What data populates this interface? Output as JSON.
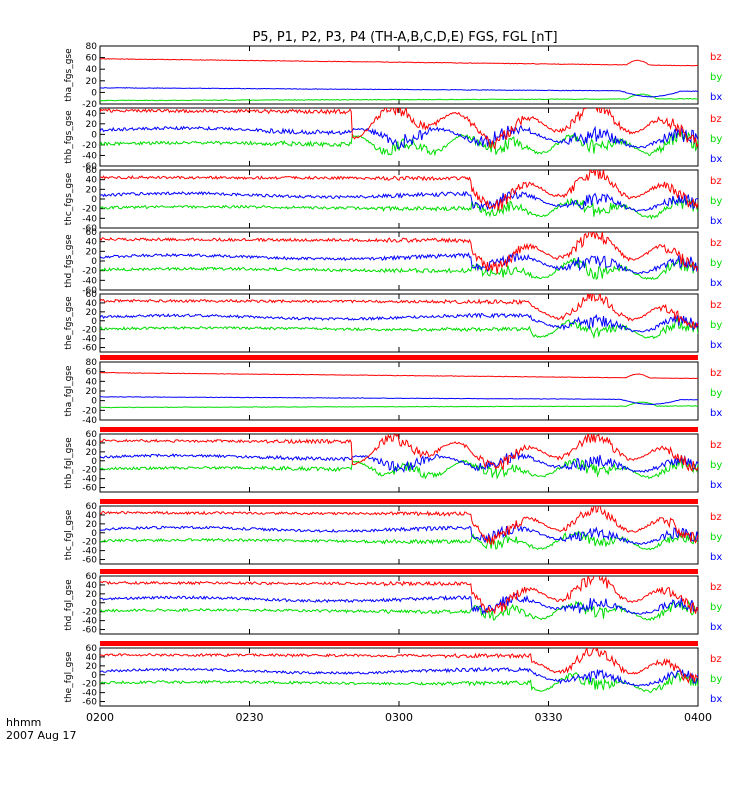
{
  "chart_data": {
    "type": "line",
    "title": "P5, P1, P2, P3, P4 (TH-A,B,C,D,E) FGS, FGL [nT]",
    "x_ticks": [
      "0200",
      "0230",
      "0300",
      "0330",
      "0400"
    ],
    "x_range": [
      "02:00",
      "04:00"
    ],
    "x_title": "hhmm",
    "date": "2007 Aug 17",
    "series_colors": {
      "bz": "#ff0000",
      "by": "#00dd00",
      "bx": "#0000ff"
    },
    "panels": [
      {
        "ylabel": "tha_fgs_gse",
        "yticks": [
          "80",
          "60",
          "40",
          "20",
          "0",
          "-20"
        ],
        "ylim": [
          -20,
          80
        ],
        "legend": [
          "bz",
          "by",
          "bx"
        ],
        "kind": "quiet",
        "bar": false
      },
      {
        "ylabel": "thb_fgs_gse",
        "yticks": [
          "40",
          "20",
          "0",
          "-20",
          "-40",
          "-60"
        ],
        "ylim": [
          -60,
          50
        ],
        "legend": [
          "bz",
          "by",
          "bx"
        ],
        "kind": "b",
        "bar": false
      },
      {
        "ylabel": "thc_fgs_gse",
        "yticks": [
          "60",
          "40",
          "20",
          "0",
          "-20",
          "-40",
          "-60"
        ],
        "ylim": [
          -60,
          60
        ],
        "legend": [
          "bz",
          "by",
          "bx"
        ],
        "kind": "c",
        "bar": false
      },
      {
        "ylabel": "thd_fgs_gse",
        "yticks": [
          "60",
          "40",
          "20",
          "0",
          "-20",
          "-40",
          "-60"
        ],
        "ylim": [
          -60,
          60
        ],
        "legend": [
          "bz",
          "by",
          "bx"
        ],
        "kind": "d",
        "bar": false
      },
      {
        "ylabel": "the_fgs_gse",
        "yticks": [
          "60",
          "40",
          "20",
          "0",
          "-20",
          "-40",
          "-60"
        ],
        "ylim": [
          -70,
          60
        ],
        "legend": [
          "bz",
          "by",
          "bx"
        ],
        "kind": "e",
        "bar": false
      },
      {
        "ylabel": "tha_fgl_gse",
        "yticks": [
          "80",
          "60",
          "40",
          "20",
          "0",
          "-20",
          "-40"
        ],
        "ylim": [
          -40,
          80
        ],
        "legend": [
          "bz",
          "by",
          "bx"
        ],
        "kind": "quiet",
        "bar": true
      },
      {
        "ylabel": "thb_fgl_gse",
        "yticks": [
          "60",
          "40",
          "20",
          "0",
          "-20",
          "-40",
          "-60"
        ],
        "ylim": [
          -70,
          60
        ],
        "legend": [
          "bz",
          "by",
          "bx"
        ],
        "kind": "b",
        "bar": true
      },
      {
        "ylabel": "thc_fgl_gse",
        "yticks": [
          "60",
          "40",
          "20",
          "0",
          "-20",
          "-40",
          "-60"
        ],
        "ylim": [
          -70,
          60
        ],
        "legend": [
          "bz",
          "by",
          "bx"
        ],
        "kind": "c",
        "bar": true
      },
      {
        "ylabel": "thd_fgl_gse",
        "yticks": [
          "60",
          "40",
          "20",
          "0",
          "-20",
          "-40",
          "-60"
        ],
        "ylim": [
          -70,
          60
        ],
        "legend": [
          "bz",
          "by",
          "bx"
        ],
        "kind": "d",
        "bar": true
      },
      {
        "ylabel": "the_fgl_gse",
        "yticks": [
          "60",
          "40",
          "20",
          "0",
          "-20",
          "-40",
          "-60"
        ],
        "ylim": [
          -70,
          60
        ],
        "legend": [
          "bz",
          "by",
          "bx"
        ],
        "kind": "e",
        "bar": true
      }
    ]
  }
}
